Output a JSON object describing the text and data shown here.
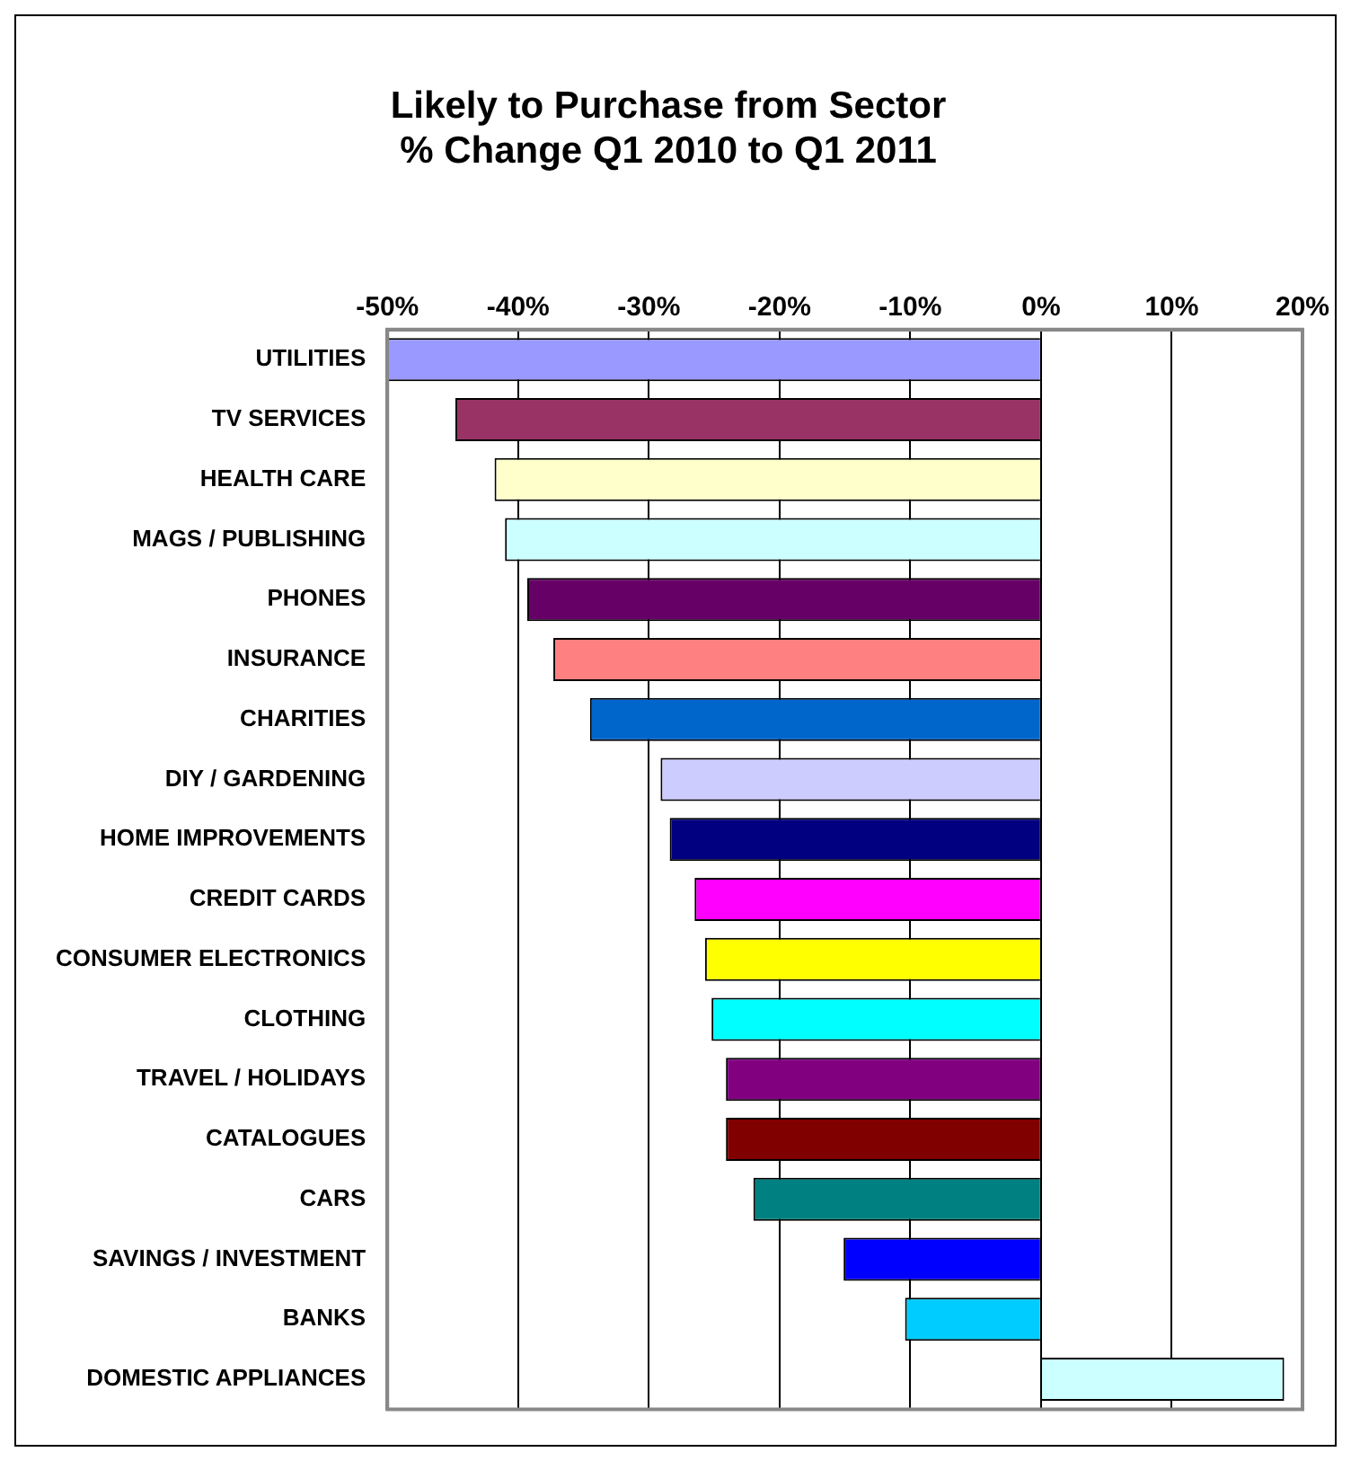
{
  "chart_data": {
    "type": "bar",
    "orientation": "horizontal",
    "title": "Likely to Purchase from Sector\n% Change Q1 2010 to Q1 2011",
    "categories": [
      "UTILITIES",
      "TV SERVICES",
      "HEALTH CARE",
      "MAGS / PUBLISHING",
      "PHONES",
      "INSURANCE",
      "CHARITIES",
      "DIY / GARDENING",
      "HOME IMPROVEMENTS",
      "CREDIT CARDS",
      "CONSUMER ELECTRONICS",
      "CLOTHING",
      "TRAVEL / HOLIDAYS",
      "CATALOGUES",
      "CARS",
      "SAVINGS / INVESTMENT",
      "BANKS",
      "DOMESTIC APPLIANCES"
    ],
    "values": [
      -50,
      -44.8,
      -41.8,
      -41,
      -39.3,
      -37.3,
      -34.5,
      -29.1,
      -28.4,
      -26.5,
      -25.7,
      -25.2,
      -24.1,
      -24.1,
      -22,
      -15.1,
      -10.4,
      18.6
    ],
    "colors": [
      "#9999ff",
      "#993366",
      "#ffffcc",
      "#ccffff",
      "#660066",
      "#ff8080",
      "#0066cc",
      "#ccccff",
      "#000080",
      "#ff00ff",
      "#ffff00",
      "#00ffff",
      "#800080",
      "#800000",
      "#008080",
      "#0000ff",
      "#00ccff",
      "#ccffff"
    ],
    "xlim": [
      -50,
      20
    ],
    "xticks": [
      {
        "value": -50,
        "label": "-50%"
      },
      {
        "value": -40,
        "label": "-40%"
      },
      {
        "value": -30,
        "label": "-30%"
      },
      {
        "value": -20,
        "label": "-20%"
      },
      {
        "value": -10,
        "label": "-10%"
      },
      {
        "value": 0,
        "label": "0%"
      },
      {
        "value": 10,
        "label": "10%"
      },
      {
        "value": 20,
        "label": "20%"
      }
    ],
    "grid": "x",
    "legend": false
  }
}
